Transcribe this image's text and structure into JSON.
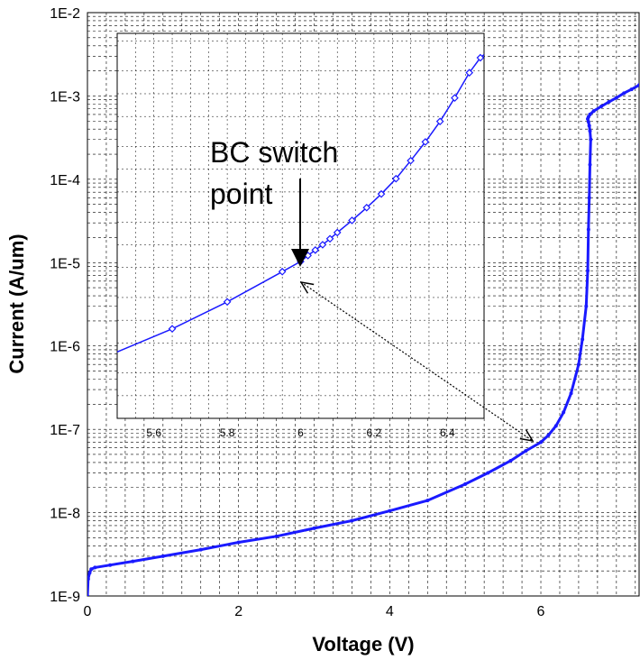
{
  "chart_data": {
    "type": "line",
    "xlabel": "Voltage (V)",
    "ylabel": "Current (A/um)",
    "xlim": [
      0,
      7.3
    ],
    "ylim_log10": [
      -9,
      -2
    ],
    "log_scale_y": true,
    "grid": true,
    "x_ticks": [
      "0",
      "2",
      "4",
      "6"
    ],
    "y_ticks": [
      "1E-9",
      "1E-8",
      "1E-7",
      "1E-6",
      "1E-5",
      "1E-4",
      "1E-3",
      "1E-2"
    ],
    "series": [
      {
        "color": "#1a1aff",
        "x": [
          0,
          0.01,
          0.03,
          0.05,
          0.1,
          0.3,
          0.6,
          1.0,
          1.5,
          2.0,
          2.5,
          3.0,
          3.5,
          4.0,
          4.5,
          5.0,
          5.3,
          5.6,
          5.8,
          6.0,
          6.1,
          6.2,
          6.3,
          6.4,
          6.5,
          6.55,
          6.6,
          6.62,
          6.63,
          6.64,
          6.65,
          6.66,
          6.65,
          6.64,
          6.63,
          6.62,
          6.63,
          6.65,
          6.7,
          6.8,
          6.9,
          7.0,
          7.1,
          7.2,
          7.3
        ],
        "y": [
          1e-09,
          1.6e-09,
          1.9e-09,
          2.1e-09,
          2.2e-09,
          2.35e-09,
          2.6e-09,
          3e-09,
          3.6e-09,
          4.4e-09,
          5.2e-09,
          6.5e-09,
          8e-09,
          1.05e-08,
          1.4e-08,
          2.2e-08,
          3e-08,
          4.2e-08,
          5.5e-08,
          7e-08,
          8.5e-08,
          1.1e-07,
          1.6e-07,
          2.7e-07,
          6e-07,
          1.2e-06,
          3e-06,
          8e-06,
          2.5e-05,
          6e-05,
          0.00015,
          0.0003,
          0.00038,
          0.00044,
          0.00049,
          0.00053,
          0.00056,
          0.0006,
          0.00066,
          0.00075,
          0.00085,
          0.00095,
          0.00108,
          0.0012,
          0.00135
        ]
      }
    ],
    "inset": {
      "xlim": [
        5.5,
        6.5
      ],
      "ylim_log10": [
        -7.3,
        -2.2
      ],
      "x_ticks": [
        "5.6",
        "5.8",
        "6",
        "6.2",
        "6.4"
      ],
      "series": [
        {
          "color": "#1a1aff",
          "x": [
            5.5,
            5.65,
            5.8,
            5.95,
            6.0,
            6.02,
            6.04,
            6.06,
            6.08,
            6.1,
            6.14,
            6.18,
            6.22,
            6.26,
            6.3,
            6.34,
            6.38,
            6.42,
            6.46,
            6.49,
            6.5
          ],
          "y": [
            3.8e-07,
            7.7e-07,
            1.75e-06,
            4.4e-06,
            6e-06,
            7.2e-06,
            8.5e-06,
            1e-05,
            1.2e-05,
            1.45e-05,
            2.1e-05,
            3.1e-05,
            4.7e-05,
            7.5e-05,
            0.00013,
            0.00023,
            0.00043,
            0.00088,
            0.0019,
            0.003,
            0.0033
          ]
        }
      ]
    },
    "annotations": {
      "bc_switch_line1": "BC switch",
      "bc_switch_line2": "point"
    }
  }
}
